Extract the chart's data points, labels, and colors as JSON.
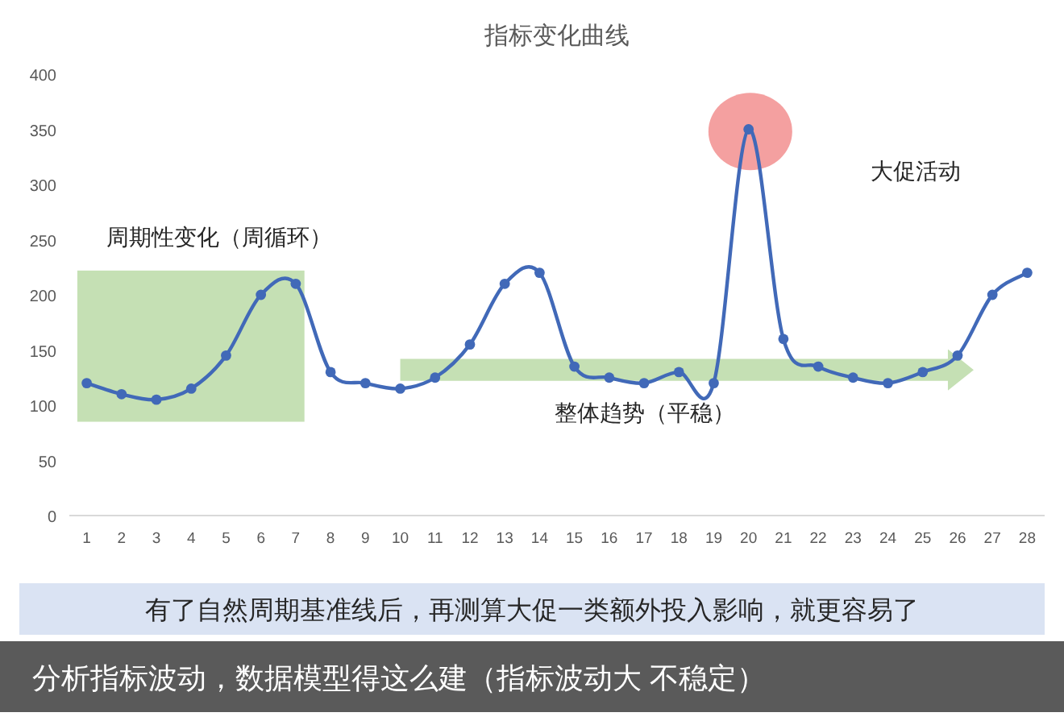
{
  "chart_data": {
    "type": "line",
    "title": "指标变化曲线",
    "categories": [
      "1",
      "2",
      "3",
      "4",
      "5",
      "6",
      "7",
      "8",
      "9",
      "10",
      "11",
      "12",
      "13",
      "14",
      "15",
      "16",
      "17",
      "18",
      "19",
      "20",
      "21",
      "22",
      "23",
      "24",
      "25",
      "26",
      "27",
      "28"
    ],
    "values": [
      120,
      110,
      105,
      115,
      145,
      200,
      210,
      130,
      120,
      115,
      125,
      155,
      210,
      220,
      135,
      125,
      120,
      130,
      120,
      350,
      160,
      135,
      125,
      120,
      130,
      145,
      200,
      220
    ],
    "color": "#4169b8",
    "marker": "circle",
    "line_style": "solid",
    "ylim": [
      0,
      400
    ],
    "yticks": [
      0,
      50,
      100,
      150,
      200,
      250,
      300,
      350,
      400
    ],
    "annotations": [
      "周期性变化（周循环）",
      "整体趋势（平稳）",
      "大促活动",
      "有了自然周期基准线后，再测算大促一类额外投入影响，就更容易了",
      "分析指标波动，数据模型得这么建（指标波动大 不稳定）"
    ]
  }
}
